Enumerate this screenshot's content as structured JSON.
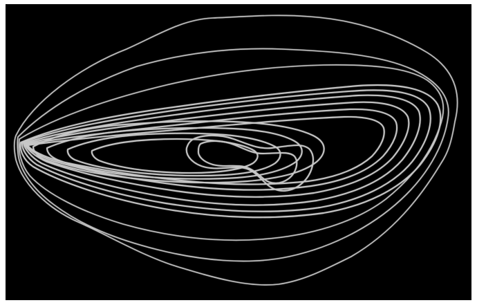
{
  "image": {
    "subject": "concentric-contour-rings",
    "background_color": "#000000",
    "frame_color": "#ffffff",
    "line_color": "#c8c8c8",
    "ring_count": 15
  }
}
